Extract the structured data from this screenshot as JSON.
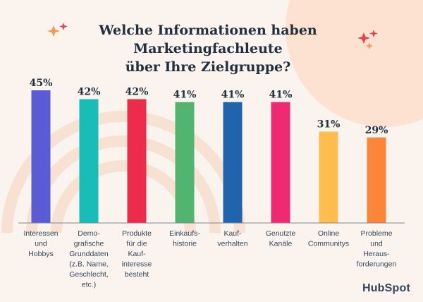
{
  "title": {
    "line1": "Welche Informationen haben Marketingfachleute",
    "line2": "über Ihre Zielgruppe?"
  },
  "brand": "HubSpot",
  "colors": {
    "background": "#fbf3ed",
    "circle": "#fde2d2",
    "arcs": "#f6e1d3",
    "axis": "#7f8891",
    "spark_red": "#e0474c",
    "spark_orange": "#f59a55"
  },
  "chart_data": {
    "type": "bar",
    "title": "Welche Informationen haben Marketingfachleute über Ihre Zielgruppe?",
    "xlabel": "",
    "ylabel": "",
    "ylim": [
      0,
      45
    ],
    "grid": false,
    "categories": [
      [
        "Interessen",
        "und",
        "Hobbys"
      ],
      [
        "Demo-",
        "grafische",
        "Grunddaten",
        "(z.B. Name,",
        "Geschlecht,",
        "etc.)"
      ],
      [
        "Produkte",
        "für die",
        "Kauf-",
        "interesse",
        "besteht"
      ],
      [
        "Einkaufs-",
        "historie"
      ],
      [
        "Kauf-",
        "verhalten"
      ],
      [
        "Genutzte",
        "Kanäle"
      ],
      [
        "Online",
        "Communitys"
      ],
      [
        "Probleme",
        "und",
        "Heraus-",
        "forderungen"
      ]
    ],
    "values": [
      45,
      42,
      42,
      41,
      41,
      41,
      31,
      29
    ],
    "value_labels": [
      "45%",
      "42%",
      "42%",
      "41%",
      "41%",
      "41%",
      "31%",
      "29%"
    ],
    "bar_colors": [
      "#5b5bd6",
      "#17bdb6",
      "#ec2c4a",
      "#52b56f",
      "#1f64ad",
      "#ee2a72",
      "#fdbd4f",
      "#fb863a"
    ]
  }
}
